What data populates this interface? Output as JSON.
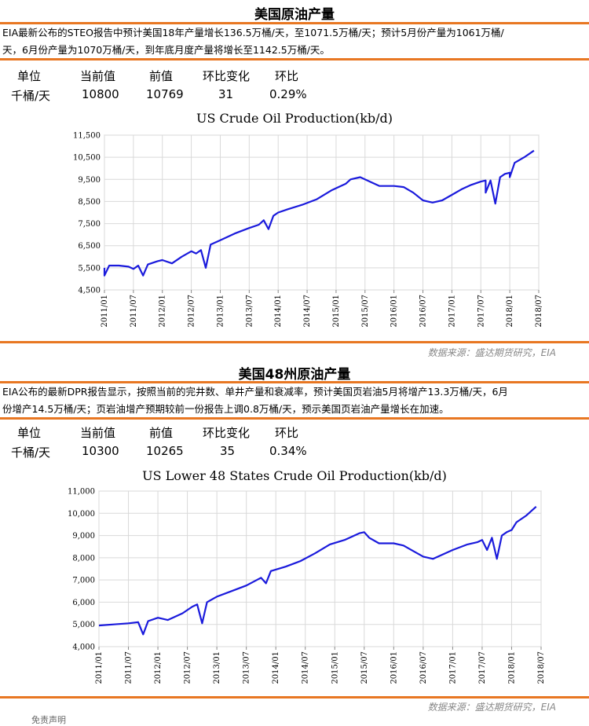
{
  "section1": {
    "title": "美国原油产量",
    "text_line1": "EIA最新公布的STEO报告中预计美国18年产量增长136.5万桶/天，至1071.5万桶/天；预计5月份产量为1061万桶/",
    "text_line2": "天，6月份产量为1070万桶/天，到年底月度产量将增长至1142.5万桶/天。",
    "stats": {
      "headers": [
        "单位",
        "当前值",
        "前值",
        "环比变化",
        "环比"
      ],
      "values": [
        "千桶/天",
        "10800",
        "10769",
        "31",
        "0.29%"
      ]
    },
    "source": "数据来源：盛达期货研究，EIA"
  },
  "section2": {
    "title": "美国48州原油产量",
    "text_line1": "EIA公布的最新DPR报告显示，按照当前的完井数、单井产量和衰减率，预计美国页岩油5月将增产13.3万桶/天，6月",
    "text_line2": "份增产14.5万桶/天；页岩油增产预期较前一份报告上调0.8万桶/天，预示美国页岩油产量增长在加速。",
    "stats": {
      "headers": [
        "单位",
        "当前值",
        "前值",
        "环比变化",
        "环比"
      ],
      "values": [
        "千桶/天",
        "10300",
        "10265",
        "35",
        "0.34%"
      ]
    },
    "source": "数据来源：盛达期货研究，EIA"
  },
  "footer_note": "免责声明",
  "colors": {
    "line": "#1a1adc",
    "accent": "#e87722",
    "grid": "#d9d9d9"
  },
  "chart_data": [
    {
      "type": "line",
      "title": "US Crude Oil Production(kb/d)",
      "xlabel": "",
      "ylabel": "",
      "x_tick_labels": [
        "2011/01",
        "2011/07",
        "2012/01",
        "2012/07",
        "2013/01",
        "2013/07",
        "2014/01",
        "2014/07",
        "2015/01",
        "2015/07",
        "2016/01",
        "2016/07",
        "2017/01",
        "2017/07",
        "2018/01",
        "2018/07"
      ],
      "y_tick_labels": [
        "4,500",
        "5,500",
        "6,500",
        "7,500",
        "8,500",
        "9,500",
        "10,500",
        "11,500"
      ],
      "ylim": [
        4500,
        11500
      ],
      "xlim": [
        "2011/01",
        "2018/07"
      ],
      "grid": true,
      "series": [
        {
          "points": [
            [
              "2011/01",
              5500
            ],
            [
              "2011/01",
              5150
            ],
            [
              "2011/02",
              5600
            ],
            [
              "2011/04",
              5600
            ],
            [
              "2011/06",
              5550
            ],
            [
              "2011/07",
              5450
            ],
            [
              "2011/08",
              5600
            ],
            [
              "2011/09",
              5150
            ],
            [
              "2011/10",
              5650
            ],
            [
              "2011/12",
              5800
            ],
            [
              "2012/01",
              5850
            ],
            [
              "2012/03",
              5700
            ],
            [
              "2012/05",
              6000
            ],
            [
              "2012/07",
              6250
            ],
            [
              "2012/08",
              6150
            ],
            [
              "2012/09",
              6300
            ],
            [
              "2012/10",
              5500
            ],
            [
              "2012/11",
              6550
            ],
            [
              "2013/01",
              6750
            ],
            [
              "2013/04",
              7050
            ],
            [
              "2013/07",
              7300
            ],
            [
              "2013/09",
              7450
            ],
            [
              "2013/10",
              7650
            ],
            [
              "2013/11",
              7250
            ],
            [
              "2013/12",
              7850
            ],
            [
              "2014/01",
              8000
            ],
            [
              "2014/03",
              8150
            ],
            [
              "2014/06",
              8350
            ],
            [
              "2014/09",
              8600
            ],
            [
              "2014/12",
              9000
            ],
            [
              "2015/03",
              9300
            ],
            [
              "2015/04",
              9500
            ],
            [
              "2015/06",
              9600
            ],
            [
              "2015/08",
              9400
            ],
            [
              "2015/10",
              9200
            ],
            [
              "2016/01",
              9200
            ],
            [
              "2016/03",
              9150
            ],
            [
              "2016/05",
              8900
            ],
            [
              "2016/07",
              8550
            ],
            [
              "2016/09",
              8450
            ],
            [
              "2016/11",
              8550
            ],
            [
              "2017/01",
              8800
            ],
            [
              "2017/03",
              9050
            ],
            [
              "2017/05",
              9250
            ],
            [
              "2017/07",
              9400
            ],
            [
              "2017/08",
              9450
            ],
            [
              "2017/08",
              8900
            ],
            [
              "2017/09",
              9450
            ],
            [
              "2017/10",
              8400
            ],
            [
              "2017/11",
              9600
            ],
            [
              "2017/12",
              9750
            ],
            [
              "2018/01",
              9800
            ],
            [
              "2018/01",
              9600
            ],
            [
              "2018/02",
              10250
            ],
            [
              "2018/04",
              10500
            ],
            [
              "2018/06",
              10800
            ]
          ]
        }
      ]
    },
    {
      "type": "line",
      "title": "US Lower 48 States Crude Oil Production(kb/d)",
      "xlabel": "",
      "ylabel": "",
      "x_tick_labels": [
        "2011/01",
        "2011/07",
        "2012/01",
        "2012/07",
        "2013/01",
        "2013/07",
        "2014/01",
        "2014/07",
        "2015/01",
        "2015/07",
        "2016/01",
        "2016/07",
        "2017/01",
        "2017/07",
        "2018/01",
        "2018/07"
      ],
      "y_tick_labels": [
        "4,000",
        "5,000",
        "6,000",
        "7,000",
        "8,000",
        "9,000",
        "10,000",
        "11,000"
      ],
      "ylim": [
        4000,
        11000
      ],
      "xlim": [
        "2011/01",
        "2018/07"
      ],
      "grid": true,
      "series": [
        {
          "points": [
            [
              "2011/01",
              4950
            ],
            [
              "2011/04",
              5000
            ],
            [
              "2011/07",
              5050
            ],
            [
              "2011/09",
              5100
            ],
            [
              "2011/10",
              4550
            ],
            [
              "2011/11",
              5150
            ],
            [
              "2012/01",
              5300
            ],
            [
              "2012/03",
              5200
            ],
            [
              "2012/06",
              5500
            ],
            [
              "2012/08",
              5800
            ],
            [
              "2012/09",
              5900
            ],
            [
              "2012/10",
              5050
            ],
            [
              "2012/11",
              6000
            ],
            [
              "2013/01",
              6250
            ],
            [
              "2013/04",
              6500
            ],
            [
              "2013/07",
              6750
            ],
            [
              "2013/10",
              7100
            ],
            [
              "2013/11",
              6850
            ],
            [
              "2013/12",
              7400
            ],
            [
              "2014/03",
              7600
            ],
            [
              "2014/06",
              7850
            ],
            [
              "2014/09",
              8200
            ],
            [
              "2014/12",
              8600
            ],
            [
              "2015/03",
              8800
            ],
            [
              "2015/06",
              9100
            ],
            [
              "2015/07",
              9150
            ],
            [
              "2015/08",
              8900
            ],
            [
              "2015/10",
              8650
            ],
            [
              "2016/01",
              8650
            ],
            [
              "2016/03",
              8550
            ],
            [
              "2016/05",
              8300
            ],
            [
              "2016/07",
              8050
            ],
            [
              "2016/09",
              7950
            ],
            [
              "2016/11",
              8150
            ],
            [
              "2017/01",
              8350
            ],
            [
              "2017/04",
              8600
            ],
            [
              "2017/06",
              8700
            ],
            [
              "2017/07",
              8800
            ],
            [
              "2017/08",
              8350
            ],
            [
              "2017/09",
              8900
            ],
            [
              "2017/10",
              7950
            ],
            [
              "2017/11",
              9000
            ],
            [
              "2017/12",
              9150
            ],
            [
              "2018/01",
              9250
            ],
            [
              "2018/02",
              9600
            ],
            [
              "2018/04",
              9900
            ],
            [
              "2018/06",
              10300
            ]
          ]
        }
      ]
    }
  ]
}
